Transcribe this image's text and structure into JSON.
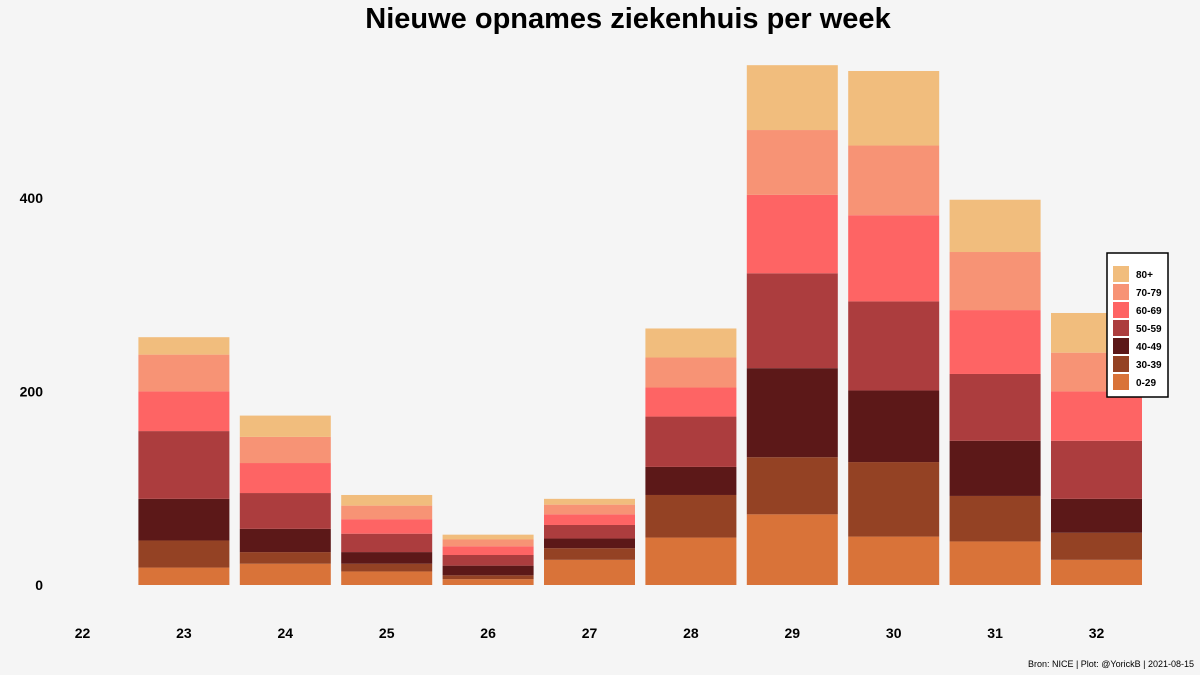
{
  "chart_data": {
    "type": "bar",
    "stacked": true,
    "title": "Nieuwe opnames ziekenhuis per week",
    "xlabel": "",
    "ylabel": "",
    "categories": [
      "22",
      "23",
      "24",
      "25",
      "26",
      "27",
      "28",
      "29",
      "30",
      "31",
      "32"
    ],
    "ylim": [
      0,
      560
    ],
    "y_ticks": [
      0,
      200,
      400
    ],
    "grid": false,
    "legend_position": "right",
    "series": [
      {
        "name": "0-29",
        "color": "#d97339",
        "values": [
          0,
          18,
          22,
          14,
          6,
          26,
          49,
          73,
          50,
          45,
          26
        ]
      },
      {
        "name": "30-39",
        "color": "#944224",
        "values": [
          0,
          28,
          12,
          8,
          4,
          12,
          44,
          59,
          77,
          47,
          28
        ]
      },
      {
        "name": "40-49",
        "color": "#5c1818",
        "values": [
          0,
          43,
          24,
          12,
          10,
          10,
          29,
          92,
          74,
          57,
          35
        ]
      },
      {
        "name": "50-59",
        "color": "#ac3d3e",
        "values": [
          0,
          70,
          37,
          19,
          11,
          14,
          52,
          98,
          92,
          69,
          60
        ]
      },
      {
        "name": "60-69",
        "color": "#fe6464",
        "values": [
          0,
          41,
          31,
          15,
          9,
          11,
          30,
          81,
          89,
          66,
          51
        ]
      },
      {
        "name": "70-79",
        "color": "#f79375",
        "values": [
          0,
          38,
          27,
          14,
          7,
          10,
          31,
          67,
          72,
          60,
          40
        ]
      },
      {
        "name": "80+",
        "color": "#f1bd7d",
        "values": [
          0,
          18,
          22,
          11,
          5,
          6,
          30,
          67,
          77,
          54,
          41
        ]
      }
    ],
    "caption": "Bron: NICE | Plot: @YorickB |  2021-08-15"
  }
}
